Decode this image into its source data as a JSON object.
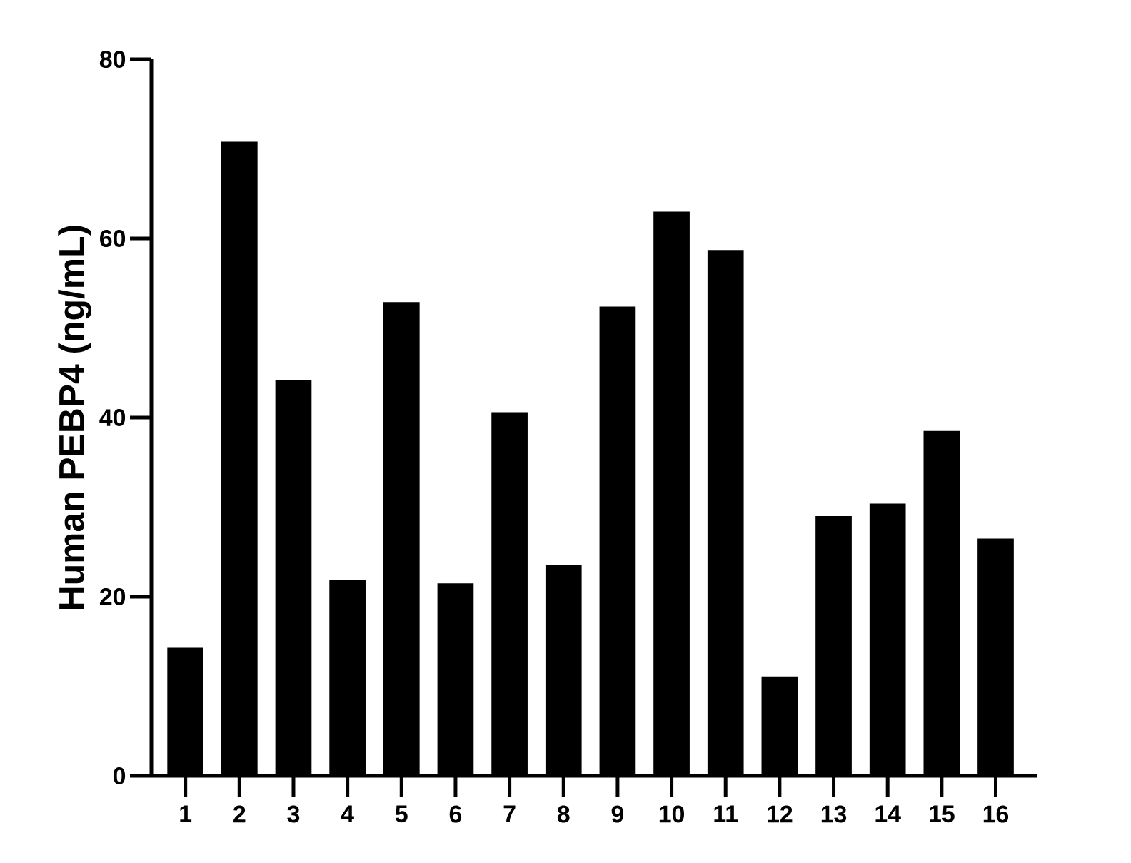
{
  "chart_data": {
    "type": "bar",
    "ylabel": "Human PEBP4 (ng/mL)",
    "categories": [
      "1",
      "2",
      "3",
      "4",
      "5",
      "6",
      "7",
      "8",
      "9",
      "10",
      "11",
      "12",
      "13",
      "14",
      "15",
      "16"
    ],
    "values": [
      14.3,
      70.8,
      44.2,
      21.9,
      52.9,
      21.5,
      40.6,
      23.5,
      52.4,
      63.0,
      58.7,
      11.1,
      29.0,
      30.4,
      38.5,
      26.5
    ],
    "color": "#000000",
    "ylim": [
      0,
      80
    ],
    "yticks": [
      0,
      20,
      40,
      60,
      80
    ],
    "grid": false
  }
}
